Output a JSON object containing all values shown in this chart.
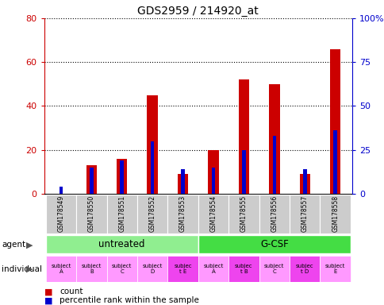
{
  "title": "GDS2959 / 214920_at",
  "samples": [
    "GSM178549",
    "GSM178550",
    "GSM178551",
    "GSM178552",
    "GSM178553",
    "GSM178554",
    "GSM178555",
    "GSM178556",
    "GSM178557",
    "GSM178558"
  ],
  "count_values": [
    0,
    13,
    16,
    45,
    9,
    20,
    52,
    50,
    9,
    66
  ],
  "percentile_values": [
    4,
    15,
    19,
    30,
    14,
    15,
    25,
    33,
    14,
    36
  ],
  "ylim_left": [
    0,
    80
  ],
  "ylim_right": [
    0,
    100
  ],
  "yticks_left": [
    0,
    20,
    40,
    60,
    80
  ],
  "yticks_right": [
    0,
    25,
    50,
    75,
    100
  ],
  "ytick_labels_right": [
    "0",
    "25",
    "50",
    "75",
    "100%"
  ],
  "agent_groups": [
    {
      "label": "untreated",
      "start": 0,
      "end": 5,
      "color": "#90EE90"
    },
    {
      "label": "G-CSF",
      "start": 5,
      "end": 10,
      "color": "#44DD44"
    }
  ],
  "individual_labels": [
    "subject\nA",
    "subject\nB",
    "subject\nC",
    "subject\nD",
    "subjec\nt E",
    "subject\nA",
    "subjec\nt B",
    "subject\nC",
    "subjec\nt D",
    "subject\nE"
  ],
  "individual_highlight": [
    false,
    false,
    false,
    false,
    true,
    false,
    true,
    false,
    true,
    false
  ],
  "individual_color_normal": "#FF99FF",
  "individual_color_highlight": "#EE44EE",
  "bar_color_count": "#CC0000",
  "bar_color_pct": "#0000CC",
  "bar_width": 0.35,
  "pct_bar_width": 0.12,
  "bg_color": "#ffffff",
  "tick_label_bg": "#cccccc",
  "left_axis_color": "#CC0000",
  "right_axis_color": "#0000CC",
  "grid_linestyle": "dotted",
  "grid_linewidth": 0.8
}
